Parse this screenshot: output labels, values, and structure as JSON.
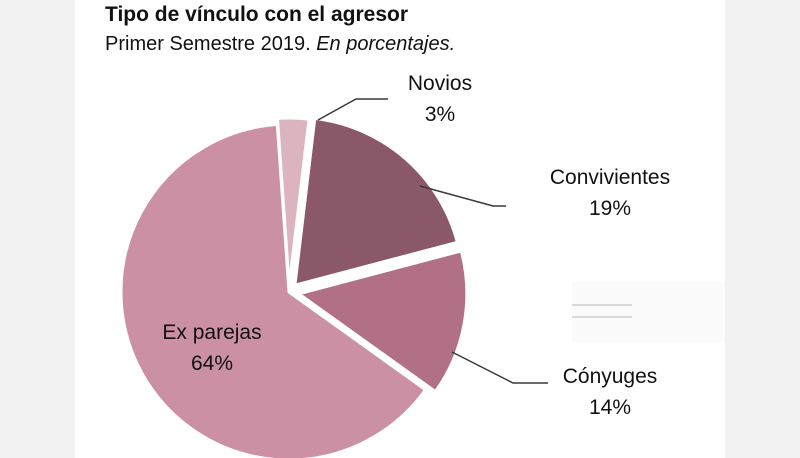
{
  "chart_data": {
    "type": "pie",
    "title": "Tipo de vínculo con el agresor",
    "subtitle_plain": "Primer Semestre 2019.",
    "subtitle_italic": "En porcentajes.",
    "slices": [
      {
        "label": "Novios",
        "value": 3,
        "value_label": "3%",
        "color": "#dcb4bf"
      },
      {
        "label": "Convivientes",
        "value": 19,
        "value_label": "19%",
        "color": "#8a5868"
      },
      {
        "label": "Cónyuges",
        "value": 14,
        "value_label": "14%",
        "color": "#b17085"
      },
      {
        "label": "Ex parejas",
        "value": 64,
        "value_label": "64%",
        "color": "#cb90a4"
      }
    ],
    "legend": "none"
  }
}
